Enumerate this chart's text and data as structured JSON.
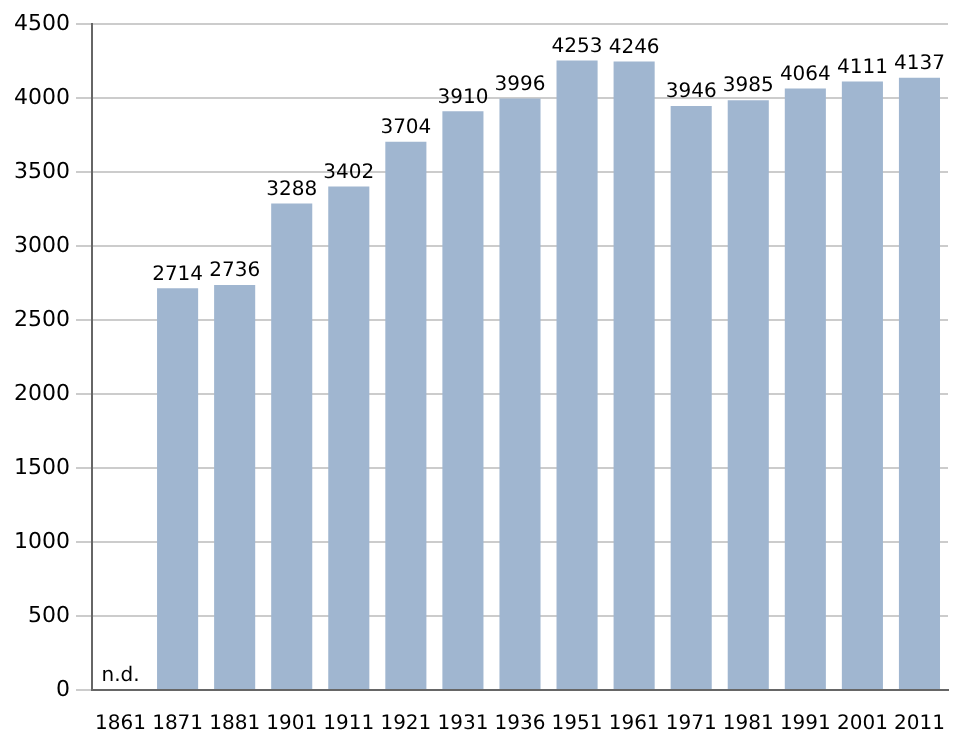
{
  "chart_data": {
    "type": "bar",
    "categories": [
      "1861",
      "1871",
      "1881",
      "1901",
      "1911",
      "1921",
      "1931",
      "1936",
      "1951",
      "1961",
      "1971",
      "1981",
      "1991",
      "2001",
      "2011"
    ],
    "values": [
      null,
      2714,
      2736,
      3288,
      3402,
      3704,
      3910,
      3996,
      4253,
      4246,
      3946,
      3985,
      4064,
      4111,
      4137
    ],
    "value_labels": [
      "n.d.",
      "2714",
      "2736",
      "3288",
      "3402",
      "3704",
      "3910",
      "3996",
      "4253",
      "4246",
      "3946",
      "3985",
      "4064",
      "4111",
      "4137"
    ],
    "color": "#a0b6d0",
    "ylim": [
      0,
      4500
    ],
    "yticks": [
      0,
      500,
      1000,
      1500,
      2000,
      2500,
      3000,
      3500,
      4000,
      4500
    ],
    "grid": "y",
    "legend": false
  }
}
